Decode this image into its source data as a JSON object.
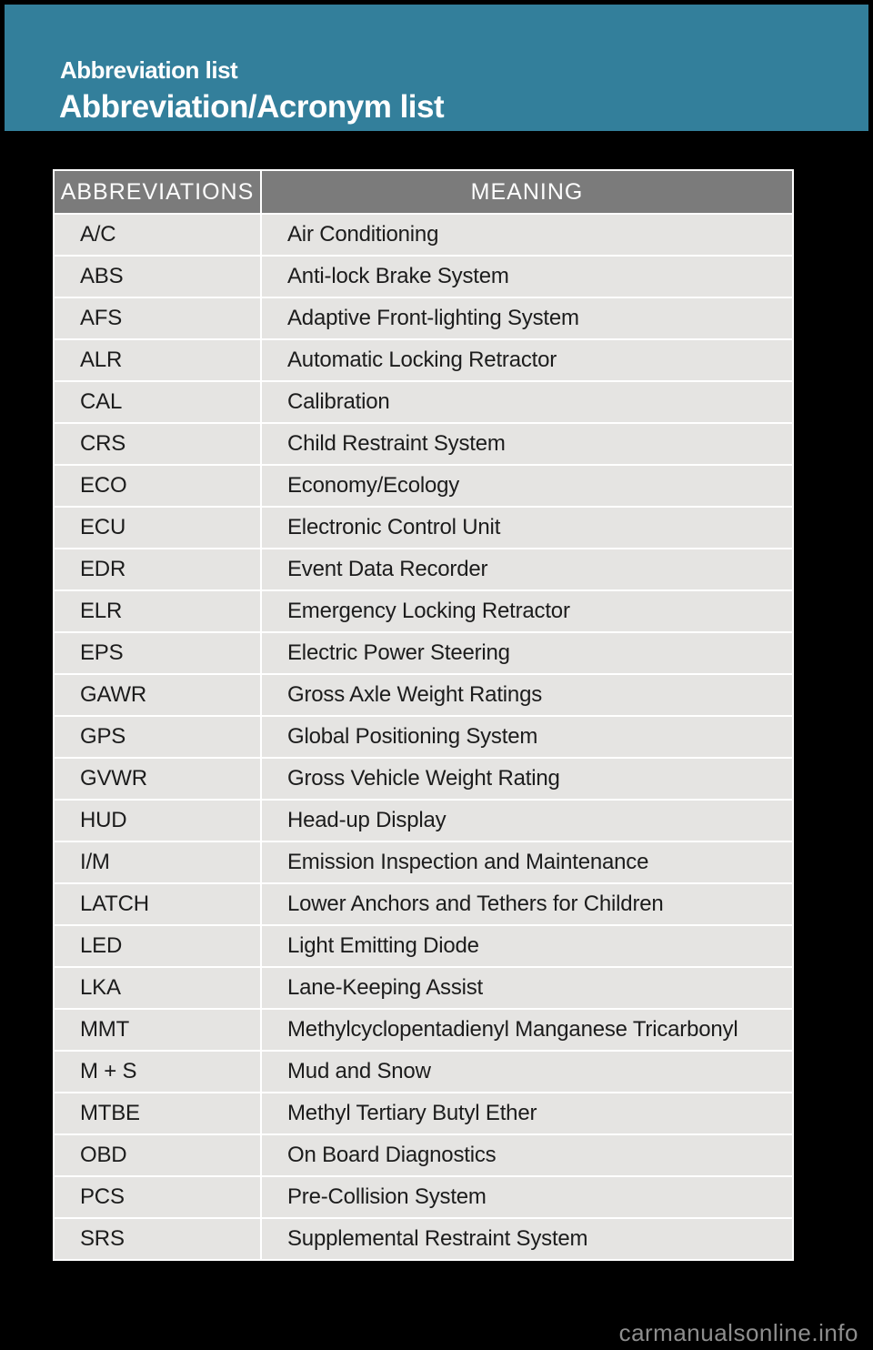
{
  "page": {
    "background": "#000000",
    "watermark": "carmanualsonline.info"
  },
  "banner": {
    "background": "#337F9B",
    "eyebrow": "Abbreviation list",
    "title": "Abbreviation/Acronym list",
    "text_color": "#FFFFFF"
  },
  "table": {
    "header_background": "#7B7B7B",
    "header_text_color": "#FDFDFD",
    "row_background": "#E5E4E2",
    "row_text_color": "#1C1C1C",
    "columns": [
      "ABBREVIATIONS",
      "MEANING"
    ],
    "rows": [
      {
        "abbr": "A/C",
        "meaning": "Air Conditioning"
      },
      {
        "abbr": "ABS",
        "meaning": "Anti-lock Brake System"
      },
      {
        "abbr": "AFS",
        "meaning": "Adaptive Front-lighting System"
      },
      {
        "abbr": "ALR",
        "meaning": "Automatic Locking Retractor"
      },
      {
        "abbr": "CAL",
        "meaning": "Calibration"
      },
      {
        "abbr": "CRS",
        "meaning": "Child Restraint System"
      },
      {
        "abbr": "ECO",
        "meaning": "Economy/Ecology"
      },
      {
        "abbr": "ECU",
        "meaning": "Electronic Control Unit"
      },
      {
        "abbr": "EDR",
        "meaning": "Event Data Recorder"
      },
      {
        "abbr": "ELR",
        "meaning": "Emergency Locking Retractor"
      },
      {
        "abbr": "EPS",
        "meaning": "Electric Power Steering"
      },
      {
        "abbr": "GAWR",
        "meaning": "Gross Axle Weight Ratings"
      },
      {
        "abbr": "GPS",
        "meaning": "Global Positioning System"
      },
      {
        "abbr": "GVWR",
        "meaning": "Gross Vehicle Weight Rating"
      },
      {
        "abbr": "HUD",
        "meaning": "Head-up Display"
      },
      {
        "abbr": "I/M",
        "meaning": "Emission Inspection and Maintenance"
      },
      {
        "abbr": "LATCH",
        "meaning": "Lower Anchors and Tethers for Children"
      },
      {
        "abbr": "LED",
        "meaning": "Light Emitting Diode"
      },
      {
        "abbr": "LKA",
        "meaning": "Lane-Keeping Assist"
      },
      {
        "abbr": "MMT",
        "meaning": "Methylcyclopentadienyl Manganese Tricarbonyl"
      },
      {
        "abbr": "M + S",
        "meaning": "Mud and Snow"
      },
      {
        "abbr": "MTBE",
        "meaning": "Methyl Tertiary Butyl Ether"
      },
      {
        "abbr": "OBD",
        "meaning": "On Board Diagnostics"
      },
      {
        "abbr": "PCS",
        "meaning": "Pre-Collision System"
      },
      {
        "abbr": "SRS",
        "meaning": "Supplemental Restraint System"
      }
    ]
  }
}
